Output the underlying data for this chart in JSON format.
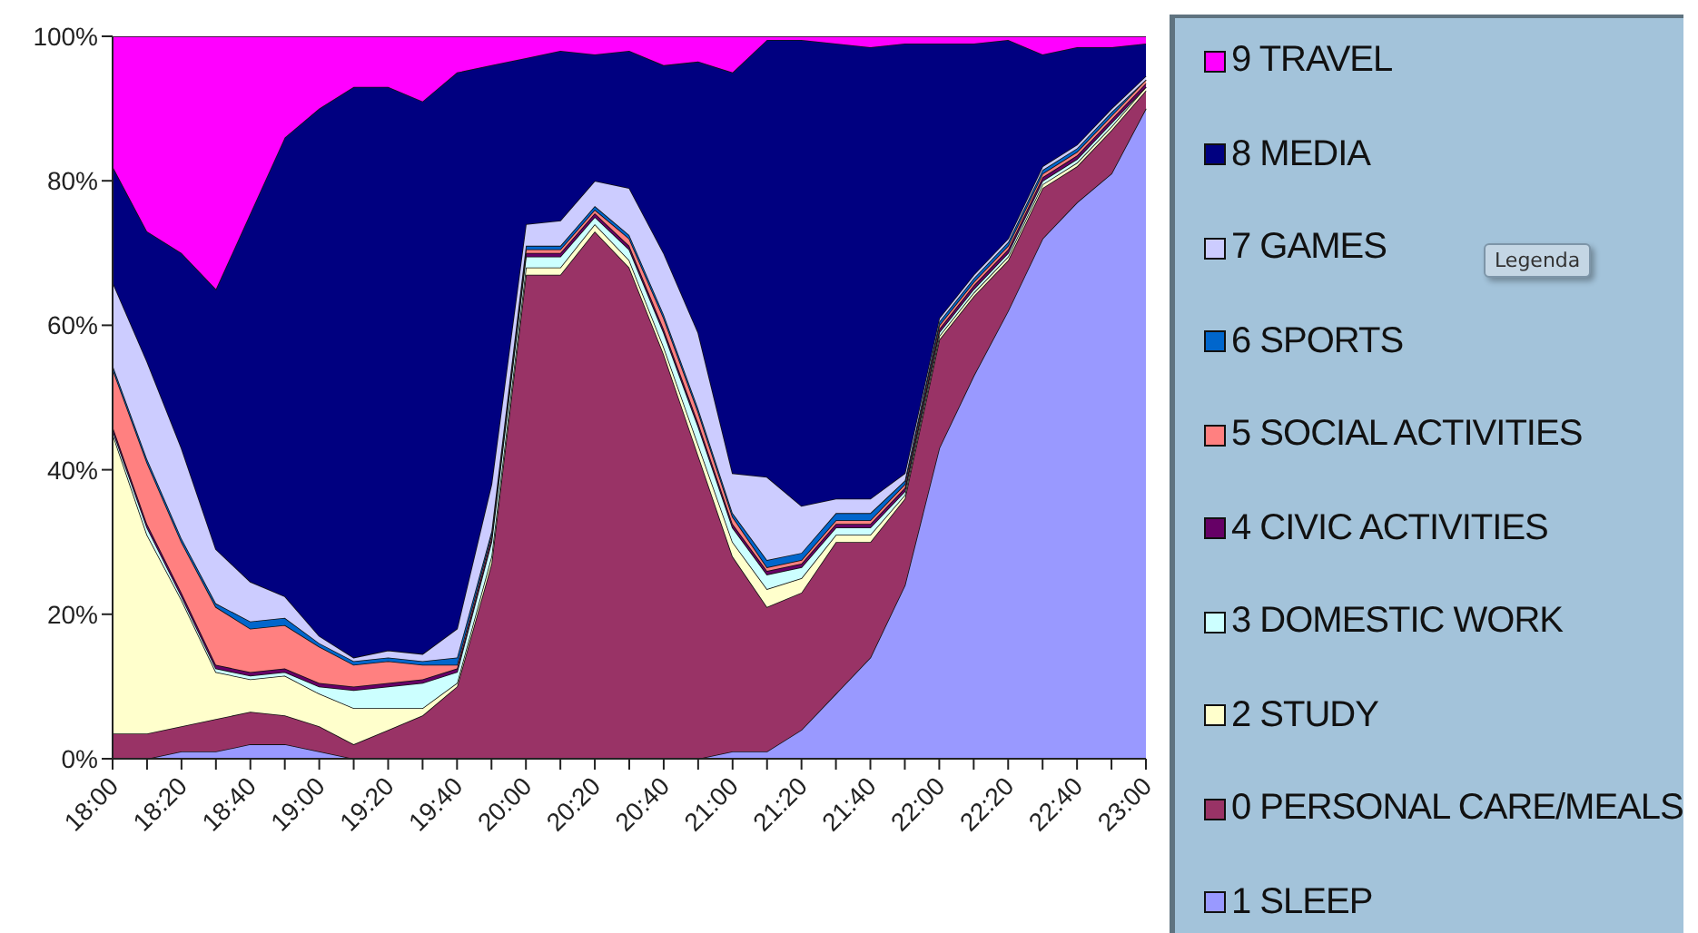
{
  "chart_data": {
    "type": "area",
    "stacked": true,
    "categories": [
      "18:00",
      null,
      "18:20",
      null,
      "18:40",
      null,
      "19:00",
      null,
      "19:20",
      null,
      "19:40",
      null,
      "20:00",
      null,
      "20:20",
      null,
      "20:40",
      null,
      "21:00",
      null,
      "21:20",
      null,
      "21:40",
      null,
      "22:00",
      null,
      "22:20",
      null,
      "22:40",
      null,
      "23:00"
    ],
    "series": [
      {
        "name": "1 SLEEP",
        "color": "#9999ff",
        "values": [
          0,
          0,
          1,
          1,
          2,
          2,
          1,
          0,
          0,
          0,
          0,
          0,
          0,
          0,
          0,
          0,
          0,
          0,
          1,
          1,
          4,
          9,
          14,
          24,
          43,
          53,
          62,
          72,
          77,
          81,
          90
        ]
      },
      {
        "name": "0 PERSONAL CARE/MEALS",
        "color": "#993366",
        "values": [
          3.5,
          3.5,
          3.5,
          4.5,
          4.5,
          4,
          3.5,
          2,
          4,
          6,
          10,
          27,
          67,
          67,
          73,
          68,
          56,
          42,
          27,
          20,
          19,
          21,
          16,
          12,
          15,
          11,
          7,
          7,
          5,
          6,
          2.5
        ]
      },
      {
        "name": "2 STUDY",
        "color": "#ffffcc",
        "values": [
          41.5,
          27.5,
          17.5,
          6.5,
          4.5,
          5.5,
          4.5,
          5,
          3,
          1,
          0.5,
          1,
          1,
          1,
          1,
          1,
          1,
          1.5,
          2,
          2.5,
          2,
          1,
          1,
          0.5,
          0.5,
          0.5,
          0.5,
          0.5,
          0.5,
          0.5,
          0.5
        ]
      },
      {
        "name": "3 DOMESTIC WORK",
        "color": "#ccffff",
        "values": [
          0.5,
          1,
          0.5,
          0.5,
          0.5,
          0.5,
          1,
          2.5,
          3,
          3.5,
          1.5,
          2,
          1.5,
          1.5,
          1,
          1.5,
          2,
          2.5,
          2,
          2,
          1.5,
          1,
          1,
          0.5,
          0.5,
          0.5,
          0.5,
          0.5,
          0.5,
          0.5,
          0
        ]
      },
      {
        "name": "4 CIVIC ACTIVITIES",
        "color": "#660066",
        "values": [
          0.5,
          0.5,
          0.5,
          0.5,
          0.5,
          0.5,
          0.5,
          0.5,
          0.5,
          0.5,
          0.5,
          0.5,
          0.5,
          0.5,
          0.5,
          0.5,
          0.5,
          0.5,
          0.5,
          0.5,
          0.5,
          0.5,
          0.5,
          0.5,
          0.5,
          0.5,
          0.5,
          0.5,
          0.5,
          0.5,
          0.5
        ]
      },
      {
        "name": "5 SOCIAL ACTIVITIES",
        "color": "#ff8080",
        "values": [
          8,
          8.5,
          7,
          8,
          6,
          6,
          5,
          3,
          3,
          2,
          0.5,
          0.5,
          0.5,
          0.5,
          0.5,
          1,
          1.5,
          1.5,
          1,
          0.5,
          0.5,
          0.5,
          0.5,
          0.5,
          0.5,
          0.5,
          0.5,
          0.5,
          0.5,
          0.5,
          0.5
        ]
      },
      {
        "name": "6 SPORTS",
        "color": "#0066cc",
        "values": [
          0.5,
          0.5,
          0.5,
          0.5,
          1,
          1,
          0.5,
          0.5,
          0.5,
          0.5,
          1,
          0.5,
          0.5,
          0.5,
          0.5,
          0.5,
          0.5,
          0.5,
          0.5,
          1,
          1,
          1,
          1,
          0.5,
          0.5,
          0.5,
          0.5,
          0.5,
          0.5,
          0.5,
          0
        ]
      },
      {
        "name": "7 GAMES",
        "color": "#ccccff",
        "values": [
          11.5,
          13.5,
          12.5,
          7.5,
          5.5,
          3,
          1,
          0.5,
          1,
          1,
          4,
          6.5,
          3,
          3.5,
          3.5,
          6.5,
          8.5,
          10.5,
          5.5,
          11.5,
          6.5,
          2,
          2,
          1,
          0.5,
          0.5,
          0.5,
          0.5,
          0.5,
          0.5,
          0.5
        ]
      },
      {
        "name": "8 MEDIA",
        "color": "#000080",
        "values": [
          16,
          18,
          27,
          36,
          51,
          63.5,
          73,
          79,
          78,
          76.5,
          77,
          58,
          23,
          23.5,
          17.5,
          19,
          26,
          37.5,
          55.5,
          60.5,
          64.5,
          63,
          62.5,
          59.5,
          38,
          32,
          27.5,
          15.5,
          13.5,
          8.5,
          4.5
        ]
      },
      {
        "name": "9 TRAVEL",
        "color": "#ff00ff",
        "values": [
          18,
          27,
          30,
          35,
          24.5,
          14,
          10,
          7,
          7,
          9,
          5,
          4,
          3,
          2,
          2.5,
          2,
          4,
          3.5,
          5,
          0.5,
          0.5,
          1,
          1.5,
          1,
          1,
          1,
          0.5,
          2.5,
          1.5,
          1.5,
          1
        ]
      }
    ],
    "ylim": [
      0,
      100
    ],
    "yticks": [
      {
        "value": 0,
        "label": "0%"
      },
      {
        "value": 20,
        "label": "20%"
      },
      {
        "value": 40,
        "label": "40%"
      },
      {
        "value": 60,
        "label": "60%"
      },
      {
        "value": 80,
        "label": "80%"
      },
      {
        "value": 100,
        "label": "100%"
      }
    ],
    "grid": false,
    "legend": "right",
    "annotations": [
      "Legenda"
    ]
  }
}
